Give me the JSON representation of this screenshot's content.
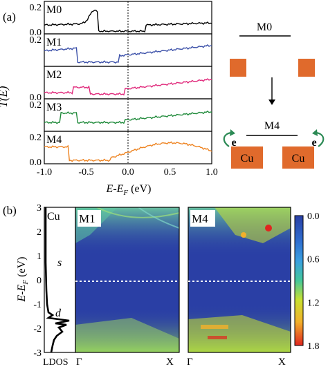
{
  "panel_a": {
    "label": "(a)",
    "ylabel": "T(E)",
    "xlabel": "E-E_F (eV)",
    "xticks": [
      "-1.0",
      "-0.5",
      "0.0",
      "0.5",
      "1.0"
    ],
    "yticks_top": [
      "0.2",
      "0.0"
    ],
    "subpanels": [
      {
        "name": "M0",
        "color": "#000000",
        "yticks": [
          "0.2",
          "0.0"
        ]
      },
      {
        "name": "M1",
        "color": "#3a4fa8",
        "yticks": [
          "0.2"
        ]
      },
      {
        "name": "M2",
        "color": "#e0277a",
        "yticks": [
          "0.0"
        ]
      },
      {
        "name": "M3",
        "color": "#1f8a3a",
        "yticks": [
          "0.2"
        ]
      },
      {
        "name": "M4",
        "color": "#ee8422",
        "yticks": [
          "0.2",
          "0.0"
        ]
      }
    ]
  },
  "schematic": {
    "top_label": "M0",
    "bottom_label": "M4",
    "atom_label": "Cu",
    "electron_label": "e",
    "atom_color": "#e06a2c",
    "arrow_color": "#2c8a55"
  },
  "panel_b": {
    "label": "(b)",
    "ylabel": "E-E_F (eV)",
    "yticks": [
      "3",
      "2",
      "1",
      "0",
      "-1",
      "-2",
      "-3"
    ],
    "ldos": {
      "element": "Cu",
      "s_label": "s",
      "d_label": "d",
      "xlabel": "LDOS"
    },
    "maps": [
      {
        "name": "M1",
        "x_left": "Γ",
        "x_right": "X"
      },
      {
        "name": "M4",
        "x_left": "Γ",
        "x_right": "X"
      }
    ],
    "colorbar": {
      "ticks": [
        "0.0",
        "0.6",
        "1.2",
        "1.8"
      ],
      "colors": [
        "#2a3fa5",
        "#3aa0e0",
        "#44c79a",
        "#c9e030",
        "#f2b02a",
        "#e0261f"
      ]
    }
  }
}
